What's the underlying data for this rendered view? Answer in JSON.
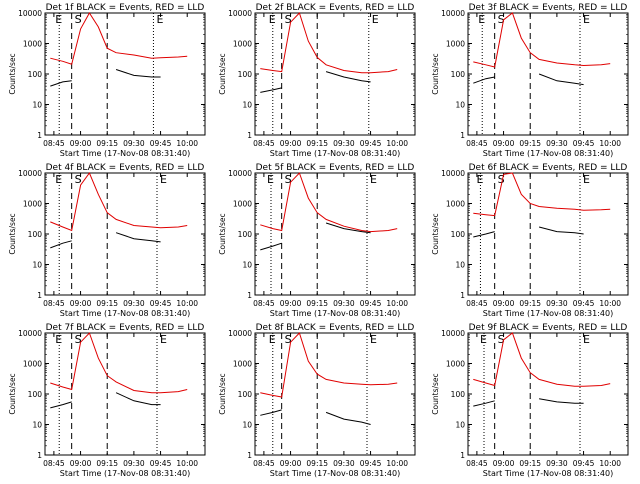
{
  "colors": {
    "events": "#000000",
    "lld": "#e00000",
    "axis": "#000000"
  },
  "shared": {
    "ylabel": "Counts/sec",
    "xlabel": "Start Time (17-Nov-08 08:31:40)",
    "xticks": [
      "08:45",
      "09:00",
      "09:15",
      "09:30",
      "09:45",
      "10:00"
    ],
    "yticks": [
      "1",
      "10",
      "100",
      "1000",
      "10000"
    ],
    "markers": [
      {
        "text": "E",
        "pos": "left"
      },
      {
        "text": "S",
        "pos": "second"
      },
      {
        "text": "E",
        "pos": "right"
      }
    ],
    "title_suffix": "BLACK = Events, RED = LLD"
  },
  "chart_data": [
    {
      "type": "line",
      "title": "Det 1f BLACK = Events, RED = LLD",
      "xlabel": "Start Time (17-Nov-08 08:31:40)",
      "ylabel": "Counts/sec",
      "ylim": [
        1,
        10000
      ],
      "log_y": true,
      "x": [
        "08:43",
        "08:50",
        "08:55",
        "09:00",
        "09:05",
        "09:10",
        "09:15",
        "09:20",
        "09:30",
        "09:40",
        "09:45",
        "09:55",
        "10:00"
      ],
      "series": [
        {
          "color": "#e00000",
          "values": [
            330,
            260,
            210,
            3000,
            10000,
            3500,
            700,
            500,
            420,
            330,
            340,
            360,
            380
          ]
        },
        {
          "color": "#000000",
          "values": [
            40,
            55,
            60,
            null,
            null,
            null,
            null,
            140,
            90,
            80,
            80,
            null,
            null
          ]
        }
      ],
      "dashed_x": [
        "08:55",
        "09:15"
      ],
      "dotted_x": [
        "08:48",
        "09:41"
      ]
    },
    {
      "type": "line",
      "title": "Det 2f BLACK = Events, RED = LLD",
      "xlabel": "Start Time (17-Nov-08 08:31:40)",
      "ylabel": "Counts/sec",
      "ylim": [
        1,
        10000
      ],
      "log_y": true,
      "x": [
        "08:43",
        "08:50",
        "08:55",
        "09:00",
        "09:05",
        "09:10",
        "09:15",
        "09:20",
        "09:30",
        "09:40",
        "09:45",
        "09:55",
        "10:00"
      ],
      "series": [
        {
          "color": "#e00000",
          "values": [
            150,
            130,
            120,
            5000,
            10000,
            1200,
            350,
            200,
            130,
            110,
            110,
            120,
            140
          ]
        },
        {
          "color": "#000000",
          "values": [
            25,
            30,
            35,
            null,
            null,
            null,
            null,
            120,
            80,
            60,
            55,
            null,
            null
          ]
        }
      ],
      "dashed_x": [
        "08:55",
        "09:15"
      ],
      "dotted_x": [
        "08:50",
        "09:44"
      ]
    },
    {
      "type": "line",
      "title": "Det 3f BLACK = Events, RED = LLD",
      "xlabel": "Start Time (17-Nov-08 08:31:40)",
      "ylabel": "Counts/sec",
      "ylim": [
        1,
        10000
      ],
      "log_y": true,
      "x": [
        "08:43",
        "08:50",
        "08:55",
        "09:00",
        "09:05",
        "09:10",
        "09:15",
        "09:20",
        "09:30",
        "09:40",
        "09:45",
        "09:55",
        "10:00"
      ],
      "series": [
        {
          "color": "#e00000",
          "values": [
            250,
            200,
            170,
            6000,
            10000,
            1500,
            500,
            300,
            230,
            200,
            190,
            200,
            220
          ]
        },
        {
          "color": "#000000",
          "values": [
            50,
            70,
            80,
            null,
            null,
            null,
            null,
            100,
            60,
            50,
            45,
            null,
            null
          ]
        }
      ],
      "dashed_x": [
        "08:55",
        "09:15"
      ],
      "dotted_x": [
        "08:48",
        "09:43"
      ]
    },
    {
      "type": "line",
      "title": "Det 4f BLACK = Events, RED = LLD",
      "xlabel": "Start Time (17-Nov-08 08:31:40)",
      "ylabel": "Counts/sec",
      "ylim": [
        1,
        10000
      ],
      "log_y": true,
      "x": [
        "08:43",
        "08:50",
        "08:55",
        "09:00",
        "09:05",
        "09:10",
        "09:15",
        "09:20",
        "09:30",
        "09:40",
        "09:45",
        "09:55",
        "10:00"
      ],
      "series": [
        {
          "color": "#e00000",
          "values": [
            250,
            170,
            130,
            4000,
            10000,
            2000,
            500,
            300,
            190,
            170,
            160,
            170,
            190
          ]
        },
        {
          "color": "#000000",
          "values": [
            35,
            50,
            60,
            null,
            null,
            null,
            null,
            110,
            70,
            60,
            55,
            null,
            null
          ]
        }
      ],
      "dashed_x": [
        "08:55",
        "09:15"
      ],
      "dotted_x": [
        "08:48",
        "09:43"
      ]
    },
    {
      "type": "line",
      "title": "Det 5f BLACK = Events, RED = LLD",
      "xlabel": "Start Time (17-Nov-08 08:31:40)",
      "ylabel": "Counts/sec",
      "ylim": [
        1,
        10000
      ],
      "log_y": true,
      "x": [
        "08:43",
        "08:50",
        "08:55",
        "09:00",
        "09:05",
        "09:10",
        "09:15",
        "09:20",
        "09:30",
        "09:40",
        "09:45",
        "09:55",
        "10:00"
      ],
      "series": [
        {
          "color": "#e00000",
          "values": [
            200,
            150,
            130,
            5000,
            10000,
            1500,
            500,
            300,
            180,
            130,
            120,
            130,
            150
          ]
        },
        {
          "color": "#000000",
          "values": [
            30,
            40,
            50,
            null,
            null,
            null,
            null,
            230,
            150,
            120,
            110,
            null,
            null
          ]
        }
      ],
      "dashed_x": [
        "08:55",
        "09:15"
      ],
      "dotted_x": [
        "08:49",
        "09:43"
      ]
    },
    {
      "type": "line",
      "title": "Det 6f BLACK = Events, RED = LLD",
      "xlabel": "Start Time (17-Nov-08 08:31:40)",
      "ylabel": "Counts/sec",
      "ylim": [
        1,
        10000
      ],
      "log_y": true,
      "x": [
        "08:43",
        "08:50",
        "08:55",
        "09:00",
        "09:05",
        "09:10",
        "09:15",
        "09:20",
        "09:30",
        "09:40",
        "09:45",
        "09:55",
        "10:00"
      ],
      "series": [
        {
          "color": "#e00000",
          "values": [
            480,
            430,
            400,
            9000,
            10000,
            2000,
            1000,
            800,
            700,
            650,
            600,
            620,
            650
          ]
        },
        {
          "color": "#000000",
          "values": [
            80,
            100,
            120,
            null,
            null,
            null,
            null,
            170,
            120,
            110,
            100,
            null,
            null
          ]
        }
      ],
      "dashed_x": [
        "08:55",
        "09:15"
      ],
      "dotted_x": [
        "08:47",
        "09:43"
      ]
    },
    {
      "type": "line",
      "title": "Det 7f BLACK = Events, RED = LLD",
      "xlabel": "Start Time (17-Nov-08 08:31:40)",
      "ylabel": "Counts/sec",
      "ylim": [
        1,
        10000
      ],
      "log_y": true,
      "x": [
        "08:43",
        "08:50",
        "08:55",
        "09:00",
        "09:05",
        "09:10",
        "09:15",
        "09:20",
        "09:30",
        "09:40",
        "09:45",
        "09:55",
        "10:00"
      ],
      "series": [
        {
          "color": "#e00000",
          "values": [
            230,
            170,
            140,
            5000,
            10000,
            1500,
            400,
            250,
            130,
            110,
            110,
            120,
            140
          ]
        },
        {
          "color": "#000000",
          "values": [
            35,
            45,
            55,
            null,
            null,
            null,
            null,
            110,
            60,
            45,
            45,
            null,
            null
          ]
        }
      ],
      "dashed_x": [
        "08:55",
        "09:15"
      ],
      "dotted_x": [
        "08:48",
        "09:43"
      ]
    },
    {
      "type": "line",
      "title": "Det 8f BLACK = Events, RED = LLD",
      "xlabel": "Start Time (17-Nov-08 08:31:40)",
      "ylabel": "Counts/sec",
      "ylim": [
        1,
        10000
      ],
      "log_y": true,
      "x": [
        "08:43",
        "08:50",
        "08:55",
        "09:00",
        "09:05",
        "09:10",
        "09:15",
        "09:20",
        "09:30",
        "09:40",
        "09:45",
        "09:55",
        "10:00"
      ],
      "series": [
        {
          "color": "#e00000",
          "values": [
            110,
            90,
            80,
            5000,
            10000,
            1200,
            450,
            300,
            230,
            210,
            200,
            210,
            230
          ]
        },
        {
          "color": "#000000",
          "values": [
            20,
            25,
            30,
            null,
            null,
            null,
            null,
            25,
            15,
            12,
            10,
            null,
            null
          ]
        }
      ],
      "dashed_x": [
        "08:55",
        "09:15"
      ],
      "dotted_x": [
        "08:50",
        "09:43"
      ]
    },
    {
      "type": "line",
      "title": "Det 9f BLACK = Events, RED = LLD",
      "xlabel": "Start Time (17-Nov-08 08:31:40)",
      "ylabel": "Counts/sec",
      "ylim": [
        1,
        10000
      ],
      "log_y": true,
      "x": [
        "08:43",
        "08:50",
        "08:55",
        "09:00",
        "09:05",
        "09:10",
        "09:15",
        "09:20",
        "09:30",
        "09:40",
        "09:45",
        "09:55",
        "10:00"
      ],
      "series": [
        {
          "color": "#e00000",
          "values": [
            300,
            230,
            190,
            6000,
            10000,
            1500,
            500,
            300,
            210,
            180,
            180,
            190,
            220
          ]
        },
        {
          "color": "#000000",
          "values": [
            40,
            50,
            60,
            null,
            null,
            null,
            null,
            70,
            55,
            50,
            50,
            null,
            null
          ]
        }
      ],
      "dashed_x": [
        "08:55",
        "09:15"
      ],
      "dotted_x": [
        "08:49",
        "09:43"
      ]
    }
  ]
}
